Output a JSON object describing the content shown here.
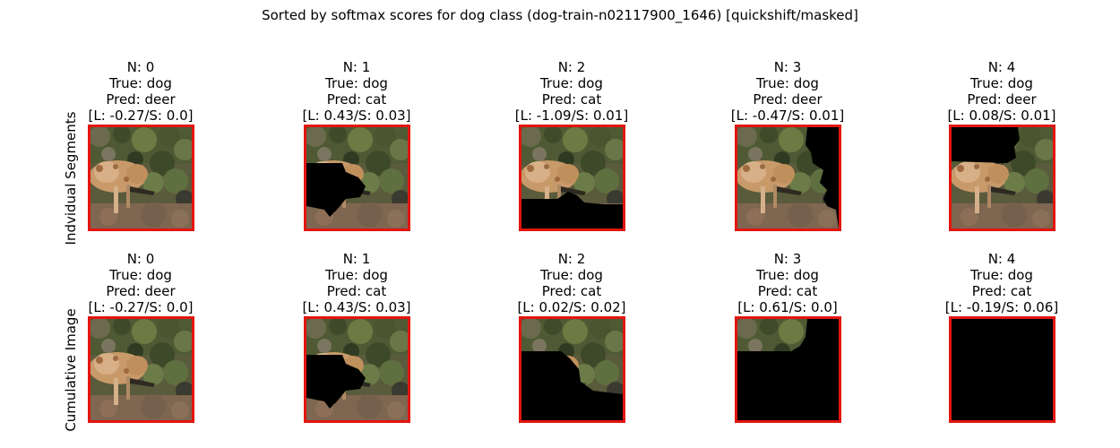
{
  "title": "Sorted by softmax scores for dog class (dog-train-n02117900_1646) [quickshift/masked]",
  "rows": [
    {
      "label": "Indvidual Segments",
      "panels": [
        {
          "n": "N: 0",
          "true": "True: dog",
          "pred": "Pred: deer",
          "score": "[L: -0.27/S: 0.0]"
        },
        {
          "n": "N: 1",
          "true": "True: dog",
          "pred": "Pred: cat",
          "score": "[L: 0.43/S: 0.03]"
        },
        {
          "n": "N: 2",
          "true": "True: dog",
          "pred": "Pred: cat",
          "score": "[L: -1.09/S: 0.01]"
        },
        {
          "n": "N: 3",
          "true": "True: dog",
          "pred": "Pred: deer",
          "score": "[L: -0.47/S: 0.01]"
        },
        {
          "n": "N: 4",
          "true": "True: dog",
          "pred": "Pred: deer",
          "score": "[L: 0.08/S: 0.01]"
        }
      ]
    },
    {
      "label": "Cumulative Image",
      "panels": [
        {
          "n": "N: 0",
          "true": "True: dog",
          "pred": "Pred: deer",
          "score": "[L: -0.27/S: 0.0]"
        },
        {
          "n": "N: 1",
          "true": "True: dog",
          "pred": "Pred: cat",
          "score": "[L: 0.43/S: 0.03]"
        },
        {
          "n": "N: 2",
          "true": "True: dog",
          "pred": "Pred: cat",
          "score": "[L: 0.02/S: 0.02]"
        },
        {
          "n": "N: 3",
          "true": "True: dog",
          "pred": "Pred: cat",
          "score": "[L: 0.61/S: 0.0]"
        },
        {
          "n": "N: 4",
          "true": "True: dog",
          "pred": "Pred: cat",
          "score": "[L: -0.19/S: 0.06]"
        }
      ]
    }
  ],
  "colors": {
    "frame": "#e3150f",
    "mask": "#000000"
  }
}
